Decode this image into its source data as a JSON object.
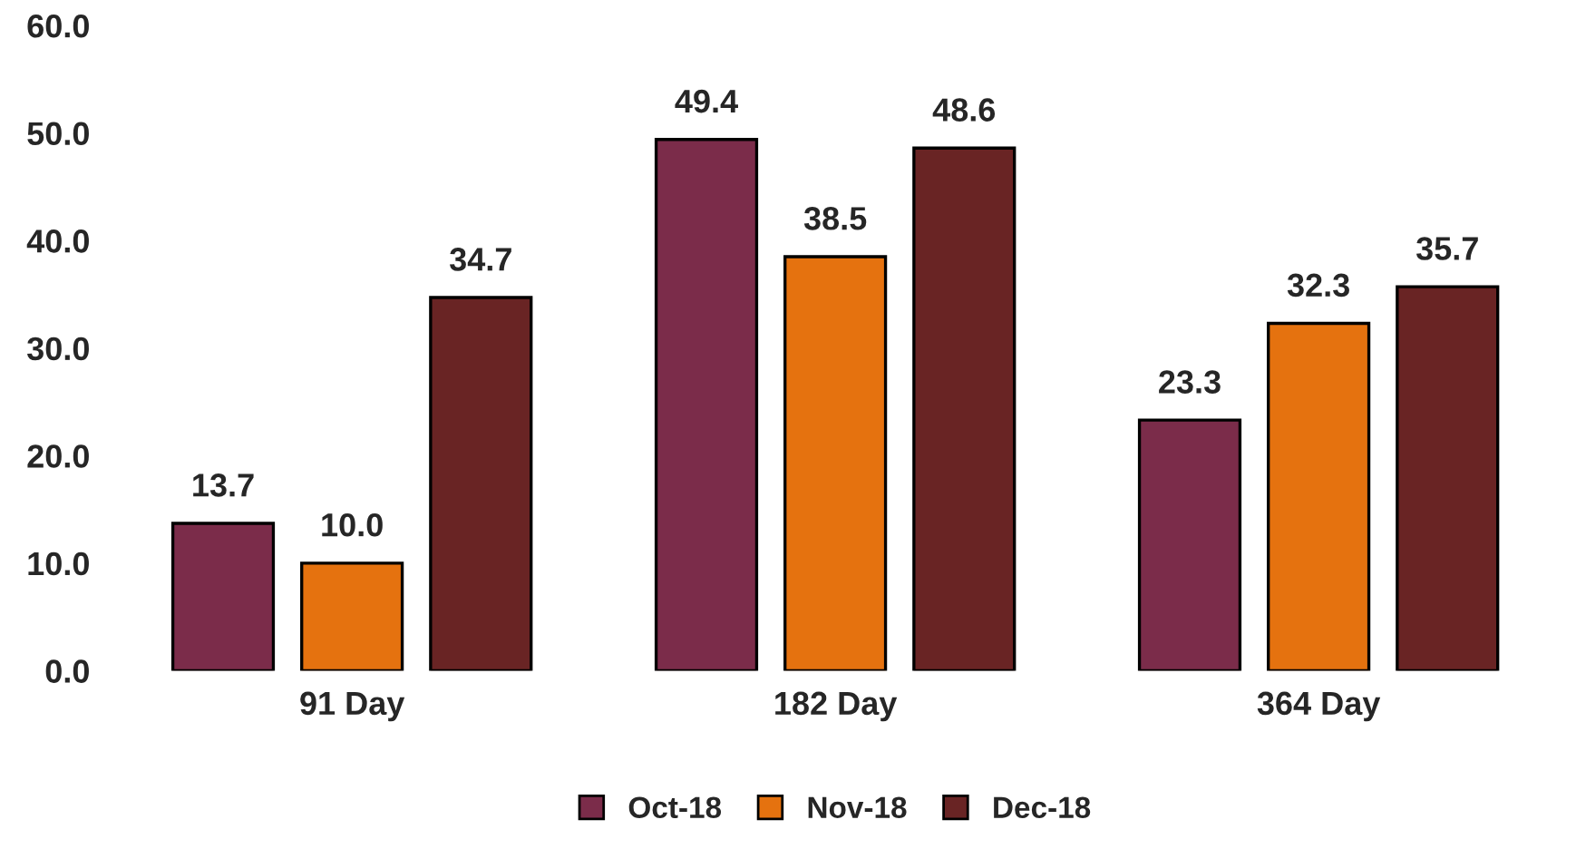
{
  "chart_data": {
    "type": "bar",
    "categories": [
      "91 Day",
      "182 Day",
      "364 Day"
    ],
    "series": [
      {
        "name": "Oct-18",
        "color": "#7b2c4a",
        "values": [
          13.7,
          49.4,
          23.3
        ]
      },
      {
        "name": "Nov-18",
        "color": "#e5720f",
        "values": [
          10.0,
          38.5,
          32.3
        ],
        "value_labels": [
          "10.0",
          "38.5",
          "32.3"
        ]
      },
      {
        "name": "Dec-18",
        "color": "#692424",
        "values": [
          34.7,
          48.6,
          35.7
        ]
      }
    ],
    "ylim": [
      0,
      60
    ],
    "yticks": [
      {
        "value": 0,
        "label": "0.0"
      },
      {
        "value": 10,
        "label": "10.0"
      },
      {
        "value": 20,
        "label": "20.0"
      },
      {
        "value": 30,
        "label": "30.0"
      },
      {
        "value": 40,
        "label": "40.0"
      },
      {
        "value": 50,
        "label": "50.0"
      },
      {
        "value": 60,
        "label": "60.0"
      }
    ],
    "data_labels": true,
    "legend": "bottom",
    "grid": false
  }
}
